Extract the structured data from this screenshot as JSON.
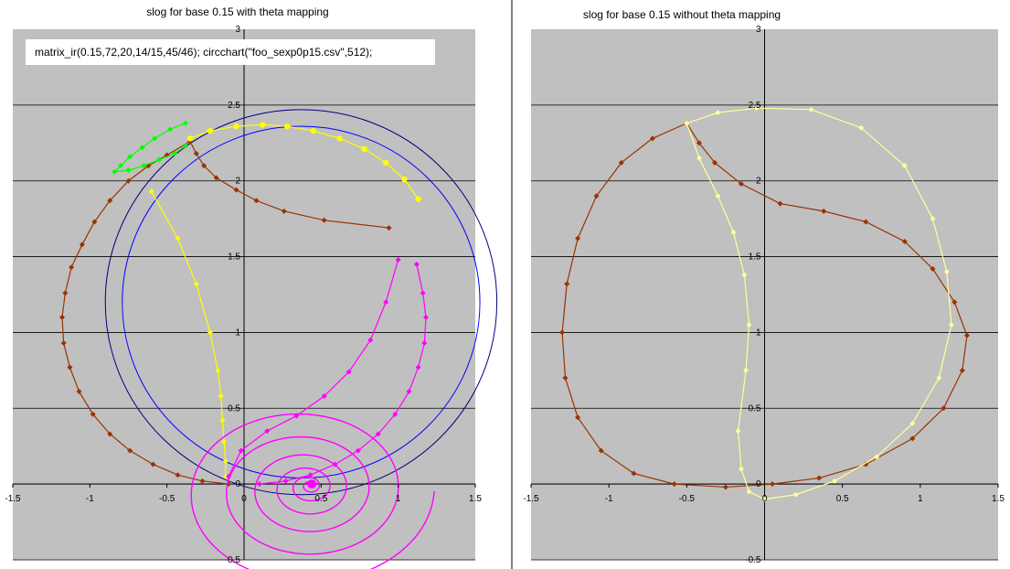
{
  "chart_data": [
    {
      "type": "line",
      "title": "slog for base 0.15 with theta mapping",
      "annotation": "matrix_ir(0.15,72,20,14/15,45/46); circchart(\"foo_sexp0p15.csv\",512);",
      "xlim": [
        -1.5,
        1.5
      ],
      "ylim": [
        -0.5,
        3
      ],
      "x_ticks": [
        "-1.5",
        "-1",
        "-0.5",
        "0",
        "0.5",
        "1",
        "1.5"
      ],
      "y_ticks": [
        "-0.5",
        "0",
        "0.5",
        "1",
        "1.5",
        "2",
        "2.5",
        "3"
      ],
      "grid": true,
      "background": "#c0c0c0",
      "circles": [
        {
          "cx": 0.37,
          "cy": 1.2,
          "r": 1.27,
          "color": "#000080"
        },
        {
          "cx": 0.37,
          "cy": 1.2,
          "r": 1.16,
          "color": "#0000ff"
        }
      ],
      "series": [
        {
          "color": "#993300",
          "marker": "diamond",
          "points": [
            [
              0.94,
              1.69
            ],
            [
              0.52,
              1.74
            ],
            [
              0.26,
              1.8
            ],
            [
              0.08,
              1.87
            ],
            [
              -0.05,
              1.94
            ],
            [
              -0.18,
              2.02
            ],
            [
              -0.26,
              2.1
            ],
            [
              -0.31,
              2.18
            ],
            [
              -0.35,
              2.26
            ],
            [
              -0.5,
              2.17
            ],
            [
              -0.62,
              2.1
            ],
            [
              -0.75,
              2.0
            ],
            [
              -0.87,
              1.87
            ],
            [
              -0.97,
              1.73
            ],
            [
              -1.05,
              1.58
            ],
            [
              -1.12,
              1.43
            ],
            [
              -1.16,
              1.26
            ],
            [
              -1.18,
              1.1
            ],
            [
              -1.17,
              0.93
            ],
            [
              -1.13,
              0.77
            ],
            [
              -1.07,
              0.61
            ],
            [
              -0.98,
              0.46
            ],
            [
              -0.87,
              0.33
            ],
            [
              -0.74,
              0.22
            ],
            [
              -0.59,
              0.13
            ],
            [
              -0.43,
              0.06
            ],
            [
              -0.27,
              0.02
            ],
            [
              -0.1,
              0.0
            ]
          ]
        },
        {
          "color": "#ffff00",
          "marker": "circle",
          "points": [
            [
              -0.35,
              2.28
            ],
            [
              -0.22,
              2.33
            ],
            [
              -0.05,
              2.36
            ],
            [
              0.12,
              2.37
            ],
            [
              0.28,
              2.36
            ],
            [
              0.45,
              2.33
            ],
            [
              0.62,
              2.28
            ],
            [
              0.78,
              2.21
            ],
            [
              0.92,
              2.12
            ],
            [
              1.04,
              2.01
            ],
            [
              1.13,
              1.88
            ]
          ]
        },
        {
          "color": "#ffff00",
          "marker": "diamond",
          "points": [
            [
              -0.6,
              1.93
            ],
            [
              -0.43,
              1.62
            ],
            [
              -0.31,
              1.32
            ],
            [
              -0.22,
              1.0
            ],
            [
              -0.17,
              0.75
            ],
            [
              -0.15,
              0.58
            ],
            [
              -0.14,
              0.42
            ],
            [
              -0.13,
              0.28
            ],
            [
              -0.12,
              0.15
            ],
            [
              -0.12,
              0.05
            ]
          ]
        },
        {
          "color": "#00ff00",
          "marker": "diamond",
          "points": [
            [
              -0.38,
              2.38
            ],
            [
              -0.48,
              2.34
            ],
            [
              -0.58,
              2.28
            ],
            [
              -0.66,
              2.22
            ],
            [
              -0.74,
              2.16
            ],
            [
              -0.8,
              2.1
            ],
            [
              -0.84,
              2.06
            ],
            [
              -0.75,
              2.07
            ],
            [
              -0.65,
              2.1
            ],
            [
              -0.55,
              2.14
            ],
            [
              -0.45,
              2.18
            ],
            [
              -0.38,
              2.23
            ]
          ]
        },
        {
          "color": "#ff00ff",
          "marker": "diamond",
          "points": [
            [
              1.0,
              1.48
            ],
            [
              0.92,
              1.2
            ],
            [
              0.82,
              0.95
            ],
            [
              0.68,
              0.74
            ],
            [
              0.52,
              0.58
            ],
            [
              0.34,
              0.45
            ],
            [
              0.15,
              0.35
            ],
            [
              -0.02,
              0.22
            ],
            [
              -0.1,
              0.05
            ]
          ]
        },
        {
          "color": "#ff00ff",
          "marker": "diamond",
          "points": [
            [
              1.12,
              1.45
            ],
            [
              1.16,
              1.26
            ],
            [
              1.18,
              1.1
            ],
            [
              1.17,
              0.93
            ],
            [
              1.13,
              0.77
            ],
            [
              1.07,
              0.61
            ],
            [
              0.98,
              0.46
            ],
            [
              0.87,
              0.33
            ],
            [
              0.74,
              0.22
            ],
            [
              0.59,
              0.13
            ],
            [
              0.43,
              0.06
            ],
            [
              0.27,
              0.02
            ],
            [
              0.1,
              0.0
            ]
          ]
        }
      ],
      "spiral": {
        "center": [
          0.44,
          0.0
        ],
        "color": "#ff00ff"
      }
    },
    {
      "type": "line",
      "title": "slog for base 0.15 without theta mapping",
      "xlim": [
        -1.5,
        1.5
      ],
      "ylim": [
        -0.5,
        3
      ],
      "x_ticks": [
        "-1.5",
        "-1",
        "-0.5",
        "0",
        "0.5",
        "1",
        "1.5"
      ],
      "y_ticks": [
        "-0.5",
        "0",
        "0.5",
        "1",
        "1.5",
        "2",
        "2.5",
        "3"
      ],
      "grid": true,
      "background": "#c0c0c0",
      "series": [
        {
          "color": "#993300",
          "marker": "diamond",
          "points": [
            [
              -0.5,
              2.38
            ],
            [
              -0.72,
              2.28
            ],
            [
              -0.92,
              2.12
            ],
            [
              -1.08,
              1.9
            ],
            [
              -1.2,
              1.62
            ],
            [
              -1.27,
              1.32
            ],
            [
              -1.3,
              1.0
            ],
            [
              -1.28,
              0.7
            ],
            [
              -1.2,
              0.44
            ],
            [
              -1.05,
              0.22
            ],
            [
              -0.84,
              0.07
            ],
            [
              -0.58,
              0.0
            ],
            [
              -0.25,
              -0.02
            ],
            [
              0.05,
              0.0
            ],
            [
              0.35,
              0.04
            ],
            [
              0.65,
              0.13
            ],
            [
              0.95,
              0.3
            ],
            [
              1.15,
              0.5
            ],
            [
              1.27,
              0.75
            ],
            [
              1.3,
              0.98
            ],
            [
              1.22,
              1.2
            ],
            [
              1.08,
              1.42
            ],
            [
              0.9,
              1.6
            ],
            [
              0.65,
              1.73
            ],
            [
              0.38,
              1.8
            ],
            [
              0.1,
              1.85
            ],
            [
              -0.15,
              1.98
            ],
            [
              -0.32,
              2.12
            ],
            [
              -0.42,
              2.25
            ],
            [
              -0.5,
              2.38
            ]
          ]
        },
        {
          "color": "#ffff99",
          "marker": "diamond",
          "points": [
            [
              -0.5,
              2.38
            ],
            [
              -0.3,
              2.45
            ],
            [
              -0.05,
              2.48
            ],
            [
              0.3,
              2.47
            ],
            [
              0.62,
              2.35
            ],
            [
              0.9,
              2.1
            ],
            [
              1.08,
              1.75
            ],
            [
              1.17,
              1.4
            ],
            [
              1.2,
              1.05
            ],
            [
              1.12,
              0.7
            ],
            [
              0.95,
              0.4
            ],
            [
              0.72,
              0.18
            ],
            [
              0.45,
              0.02
            ],
            [
              0.2,
              -0.07
            ],
            [
              0.0,
              -0.1
            ],
            [
              -0.1,
              -0.05
            ],
            [
              -0.15,
              0.1
            ],
            [
              -0.17,
              0.35
            ],
            [
              -0.12,
              0.75
            ],
            [
              -0.1,
              1.05
            ],
            [
              -0.13,
              1.38
            ],
            [
              -0.2,
              1.66
            ],
            [
              -0.3,
              1.9
            ],
            [
              -0.42,
              2.15
            ],
            [
              -0.5,
              2.38
            ]
          ]
        }
      ]
    }
  ]
}
